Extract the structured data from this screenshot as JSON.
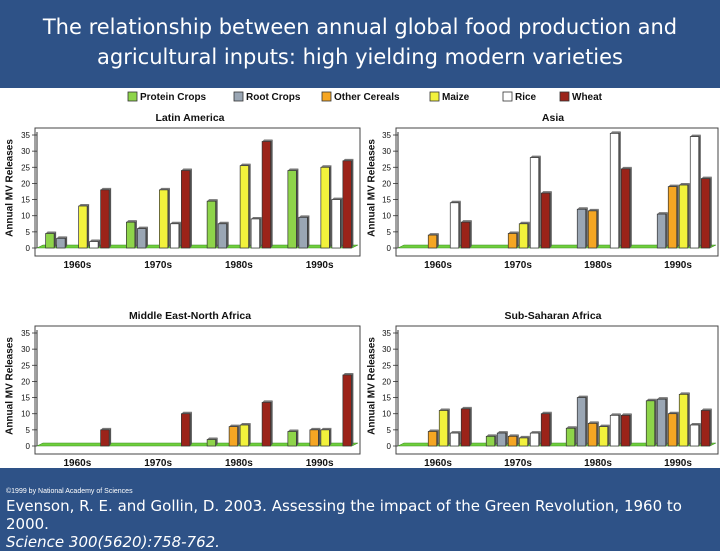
{
  "slide": {
    "title": "The relationship between annual global food production and agricultural inputs: high yielding modern varieties",
    "copyright": "©1999 by National Academy of Sciences",
    "citation_main": "Evenson, R. E. and Gollin, D. 2003. Assessing the impact of the Green Revolution, 1960 to 2000.",
    "citation_journal": "Science 300(5620):758-762."
  },
  "legend": [
    {
      "name": "Protein Crops",
      "color": "#8ed44a"
    },
    {
      "name": "Root Crops",
      "color": "#9aa6b4"
    },
    {
      "name": "Other Cereals",
      "color": "#f5a623"
    },
    {
      "name": "Maize",
      "color": "#f2f23c"
    },
    {
      "name": "Rice",
      "color": "#ffffff"
    },
    {
      "name": "Wheat",
      "color": "#9b2319"
    }
  ],
  "chart_data": [
    {
      "type": "bar",
      "title": "Latin America",
      "ylabel": "Annual MV Releases",
      "categories": [
        "1960s",
        "1970s",
        "1980s",
        "1990s"
      ],
      "ylim": [
        0,
        35
      ],
      "yticks": [
        "0",
        "5",
        "10",
        "15",
        "20",
        "25",
        "30",
        "35"
      ],
      "series": [
        {
          "name": "Protein Crops",
          "values": [
            4.5,
            8,
            14.5,
            24
          ]
        },
        {
          "name": "Root Crops",
          "values": [
            3,
            6,
            7.5,
            9.5
          ]
        },
        {
          "name": "Other Cereals",
          "values": [
            0,
            0,
            0,
            0
          ]
        },
        {
          "name": "Maize",
          "values": [
            13,
            18,
            25.5,
            25
          ]
        },
        {
          "name": "Rice",
          "values": [
            2,
            7.5,
            9,
            15
          ]
        },
        {
          "name": "Wheat",
          "values": [
            18,
            24,
            33,
            27
          ]
        }
      ]
    },
    {
      "type": "bar",
      "title": "Asia",
      "ylabel": "Annual MV Releases",
      "categories": [
        "1960s",
        "1970s",
        "1980s",
        "1990s"
      ],
      "ylim": [
        0,
        35
      ],
      "yticks": [
        "0",
        "5",
        "10",
        "15",
        "20",
        "25",
        "30",
        "35"
      ],
      "series": [
        {
          "name": "Protein Crops",
          "values": [
            0,
            0,
            0,
            0
          ]
        },
        {
          "name": "Root Crops",
          "values": [
            0,
            0,
            12,
            10.5
          ]
        },
        {
          "name": "Other Cereals",
          "values": [
            4,
            4.5,
            11.5,
            19
          ]
        },
        {
          "name": "Maize",
          "values": [
            0,
            7.5,
            0,
            19.5
          ]
        },
        {
          "name": "Rice",
          "values": [
            14,
            28,
            35.5,
            34.5
          ]
        },
        {
          "name": "Wheat",
          "values": [
            8,
            17,
            24.5,
            21.5
          ]
        }
      ]
    },
    {
      "type": "bar",
      "title": "Middle East-North Africa",
      "ylabel": "Annual MV Releases",
      "categories": [
        "1960s",
        "1970s",
        "1980s",
        "1990s"
      ],
      "ylim": [
        0,
        35
      ],
      "yticks": [
        "0",
        "5",
        "10",
        "15",
        "20",
        "25",
        "30",
        "35"
      ],
      "series": [
        {
          "name": "Protein Crops",
          "values": [
            0,
            0,
            2,
            4.5
          ]
        },
        {
          "name": "Root Crops",
          "values": [
            0,
            0,
            0,
            0
          ]
        },
        {
          "name": "Other Cereals",
          "values": [
            0,
            0,
            6,
            5
          ]
        },
        {
          "name": "Maize",
          "values": [
            0,
            0,
            6.5,
            5
          ]
        },
        {
          "name": "Rice",
          "values": [
            0,
            0,
            0,
            0
          ]
        },
        {
          "name": "Wheat",
          "values": [
            5,
            10,
            13.5,
            22
          ]
        }
      ]
    },
    {
      "type": "bar",
      "title": "Sub-Saharan Africa",
      "ylabel": "Annual MV Releases",
      "categories": [
        "1960s",
        "1970s",
        "1980s",
        "1990s"
      ],
      "ylim": [
        0,
        35
      ],
      "yticks": [
        "0",
        "5",
        "10",
        "15",
        "20",
        "25",
        "30",
        "35"
      ],
      "series": [
        {
          "name": "Protein Crops",
          "values": [
            0,
            3,
            5.5,
            14
          ]
        },
        {
          "name": "Root Crops",
          "values": [
            0,
            4,
            15,
            14.5
          ]
        },
        {
          "name": "Other Cereals",
          "values": [
            4.5,
            3,
            7,
            10
          ]
        },
        {
          "name": "Maize",
          "values": [
            11,
            2.5,
            6,
            16
          ]
        },
        {
          "name": "Rice",
          "values": [
            4,
            4,
            9.5,
            6.5
          ]
        },
        {
          "name": "Wheat",
          "values": [
            11.5,
            10,
            9.5,
            11
          ]
        }
      ]
    }
  ]
}
